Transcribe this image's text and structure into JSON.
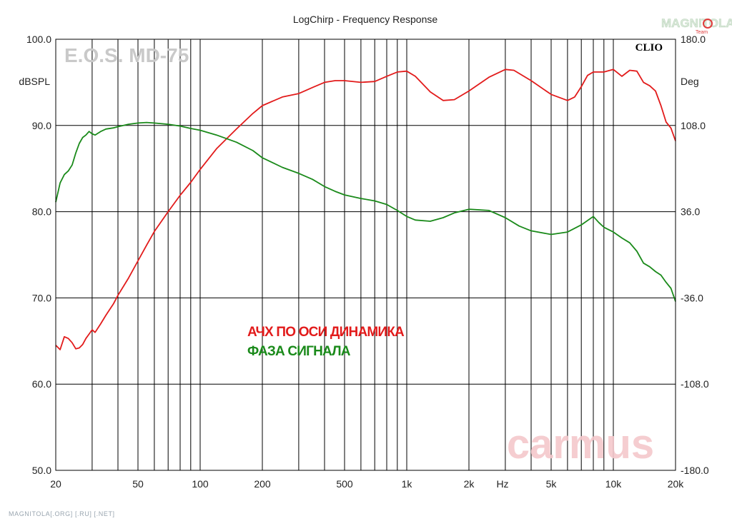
{
  "chart_data": {
    "type": "line",
    "title": "LogChirp - Frequency Response",
    "xlabel": "Hz",
    "x_scale": "log",
    "xlim": [
      20,
      20000
    ],
    "x_ticks": [
      {
        "v": 20,
        "label": "20"
      },
      {
        "v": 50,
        "label": "50"
      },
      {
        "v": 100,
        "label": "100"
      },
      {
        "v": 200,
        "label": "200"
      },
      {
        "v": 500,
        "label": "500"
      },
      {
        "v": 1000,
        "label": "1k"
      },
      {
        "v": 2000,
        "label": "2k"
      },
      {
        "v": 5000,
        "label": "5k"
      },
      {
        "v": 10000,
        "label": "10k"
      },
      {
        "v": 20000,
        "label": "20k"
      }
    ],
    "grid_x": [
      30,
      40,
      50,
      60,
      70,
      80,
      90,
      100,
      200,
      300,
      400,
      500,
      600,
      700,
      800,
      900,
      1000,
      2000,
      3000,
      4000,
      5000,
      6000,
      7000,
      8000,
      9000,
      10000
    ],
    "y_left": {
      "label": "dBSPL",
      "lim": [
        50,
        100
      ],
      "ticks": [
        "50.0",
        "60.0",
        "70.0",
        "80.0",
        "90.0",
        "100.0"
      ]
    },
    "y_right": {
      "label": "Deg",
      "lim": [
        -180,
        180
      ],
      "ticks": [
        "-180.0",
        "-108.0",
        "-36.0",
        "36.0",
        "108.0",
        "180.0"
      ]
    },
    "grid": true,
    "series": [
      {
        "name": "АЧХ ПО ОСИ ДИНАМИКА",
        "axis": "left",
        "color": "#e21b1b",
        "points": [
          [
            20,
            64.5
          ],
          [
            21,
            64.0
          ],
          [
            22,
            65.5
          ],
          [
            23,
            65.3
          ],
          [
            24,
            64.8
          ],
          [
            25,
            64.1
          ],
          [
            26,
            64.2
          ],
          [
            27,
            64.6
          ],
          [
            28,
            65.3
          ],
          [
            29,
            65.8
          ],
          [
            30,
            66.3
          ],
          [
            31,
            66.0
          ],
          [
            33,
            67.0
          ],
          [
            35,
            68.0
          ],
          [
            38,
            69.3
          ],
          [
            40,
            70.3
          ],
          [
            45,
            72.3
          ],
          [
            50,
            74.3
          ],
          [
            55,
            76.1
          ],
          [
            60,
            77.7
          ],
          [
            70,
            80.0
          ],
          [
            80,
            81.9
          ],
          [
            90,
            83.4
          ],
          [
            100,
            84.9
          ],
          [
            120,
            87.3
          ],
          [
            150,
            89.6
          ],
          [
            180,
            91.4
          ],
          [
            200,
            92.3
          ],
          [
            250,
            93.3
          ],
          [
            300,
            93.7
          ],
          [
            350,
            94.4
          ],
          [
            400,
            95.0
          ],
          [
            450,
            95.2
          ],
          [
            500,
            95.2
          ],
          [
            600,
            95.0
          ],
          [
            700,
            95.1
          ],
          [
            800,
            95.7
          ],
          [
            900,
            96.2
          ],
          [
            1000,
            96.3
          ],
          [
            1100,
            95.7
          ],
          [
            1300,
            93.9
          ],
          [
            1500,
            92.9
          ],
          [
            1700,
            93.0
          ],
          [
            2000,
            94.0
          ],
          [
            2500,
            95.6
          ],
          [
            3000,
            96.5
          ],
          [
            3300,
            96.4
          ],
          [
            4000,
            95.2
          ],
          [
            5000,
            93.6
          ],
          [
            6000,
            92.9
          ],
          [
            6500,
            93.3
          ],
          [
            7000,
            94.5
          ],
          [
            7500,
            95.8
          ],
          [
            8000,
            96.2
          ],
          [
            9000,
            96.2
          ],
          [
            10000,
            96.5
          ],
          [
            11000,
            95.7
          ],
          [
            12000,
            96.4
          ],
          [
            13000,
            96.3
          ],
          [
            14000,
            95.0
          ],
          [
            15000,
            94.6
          ],
          [
            16000,
            94.0
          ],
          [
            17000,
            92.3
          ],
          [
            18000,
            90.4
          ],
          [
            19000,
            89.7
          ],
          [
            20000,
            88.2
          ]
        ]
      },
      {
        "name": "ФАЗА СИГНАЛА",
        "axis": "right",
        "color": "#1a8a1a",
        "points": [
          [
            20,
            44
          ],
          [
            21,
            60
          ],
          [
            22,
            67
          ],
          [
            23,
            70
          ],
          [
            24,
            75
          ],
          [
            25,
            85
          ],
          [
            26,
            93
          ],
          [
            27,
            98
          ],
          [
            28,
            100
          ],
          [
            29,
            103
          ],
          [
            30,
            101
          ],
          [
            31,
            100
          ],
          [
            33,
            103
          ],
          [
            35,
            105
          ],
          [
            38,
            106
          ],
          [
            40,
            107
          ],
          [
            45,
            109
          ],
          [
            50,
            110
          ],
          [
            55,
            110.5
          ],
          [
            60,
            110
          ],
          [
            70,
            109
          ],
          [
            80,
            107.5
          ],
          [
            90,
            105.5
          ],
          [
            100,
            104
          ],
          [
            120,
            100
          ],
          [
            150,
            94
          ],
          [
            180,
            87
          ],
          [
            200,
            81
          ],
          [
            250,
            73
          ],
          [
            300,
            68
          ],
          [
            350,
            63
          ],
          [
            400,
            57
          ],
          [
            450,
            53
          ],
          [
            500,
            50
          ],
          [
            600,
            47
          ],
          [
            700,
            45
          ],
          [
            800,
            42
          ],
          [
            900,
            37
          ],
          [
            1000,
            32
          ],
          [
            1100,
            29
          ],
          [
            1300,
            28
          ],
          [
            1500,
            31
          ],
          [
            1700,
            35
          ],
          [
            2000,
            38
          ],
          [
            2500,
            37
          ],
          [
            3000,
            31
          ],
          [
            3500,
            24
          ],
          [
            4000,
            20
          ],
          [
            5000,
            17
          ],
          [
            6000,
            19
          ],
          [
            7000,
            25
          ],
          [
            8000,
            32
          ],
          [
            8500,
            27
          ],
          [
            9000,
            23
          ],
          [
            10000,
            19
          ],
          [
            11000,
            14
          ],
          [
            12000,
            10
          ],
          [
            13000,
            3
          ],
          [
            14000,
            -7
          ],
          [
            15000,
            -10
          ],
          [
            16000,
            -14
          ],
          [
            17000,
            -17
          ],
          [
            18000,
            -23
          ],
          [
            19000,
            -28
          ],
          [
            20000,
            -39
          ]
        ]
      }
    ]
  },
  "legend": [
    {
      "label": "АЧХ ПО ОСИ ДИНАМИКА",
      "color": "#e21b1b"
    },
    {
      "label": "ФАЗА СИГНАЛА",
      "color": "#1a8a1a"
    }
  ],
  "brand": {
    "product": "E.O.S. MD-75",
    "software": "CLIO",
    "watermark": "carmus",
    "logo_text": "MAGNITOLA",
    "logo_sub": "Team",
    "footer": "MAGNITOLA[.ORG] [.RU] [.NET]"
  }
}
